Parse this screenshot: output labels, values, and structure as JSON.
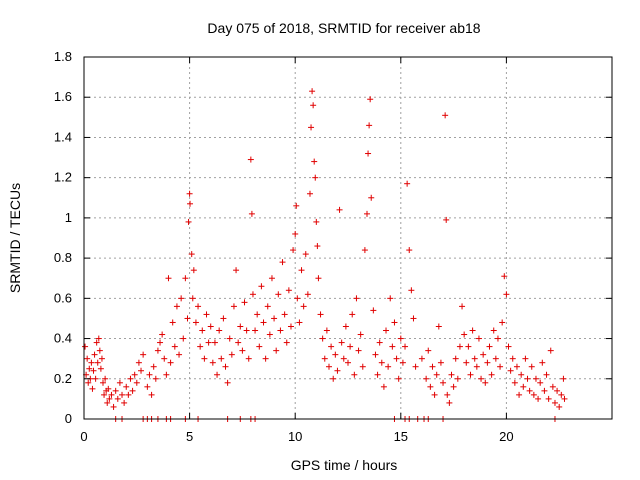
{
  "chart_data": {
    "type": "scatter",
    "title": "Day 075 of 2018, SRMTID for receiver ab18",
    "xlabel": "GPS time / hours",
    "ylabel": "SRMTID / TECUs",
    "xlim": [
      0,
      25
    ],
    "ylim": [
      0,
      1.8
    ],
    "xticks": [
      0,
      5,
      10,
      15,
      20
    ],
    "xtick_labels": [
      "0",
      "5",
      "10",
      "15",
      "20"
    ],
    "yticks": [
      0,
      0.2,
      0.4,
      0.6,
      0.8,
      1.0,
      1.2,
      1.4,
      1.6,
      1.8
    ],
    "ytick_labels": [
      "0",
      "0.2",
      "0.4",
      "0.6",
      "0.8",
      "1",
      "1.2",
      "1.4",
      "1.6",
      "1.8"
    ],
    "grid": true,
    "marker": "plus",
    "color": "#e00000",
    "series": [
      {
        "name": "SRMTID",
        "points": [
          [
            0.05,
            0.36
          ],
          [
            0.1,
            0.22
          ],
          [
            0.15,
            0.3
          ],
          [
            0.2,
            0.18
          ],
          [
            0.25,
            0.25
          ],
          [
            0.3,
            0.2
          ],
          [
            0.35,
            0.28
          ],
          [
            0.4,
            0.15
          ],
          [
            0.45,
            0.24
          ],
          [
            0.5,
            0.32
          ],
          [
            0.55,
            0.2
          ],
          [
            0.6,
            0.38
          ],
          [
            0.65,
            0.28
          ],
          [
            0.7,
            0.4
          ],
          [
            0.75,
            0.34
          ],
          [
            0.8,
            0.25
          ],
          [
            0.85,
            0.3
          ],
          [
            0.9,
            0.18
          ],
          [
            0.95,
            0.12
          ],
          [
            1.0,
            0.2
          ],
          [
            1.05,
            0.14
          ],
          [
            1.1,
            0.08
          ],
          [
            1.15,
            0.15
          ],
          [
            1.2,
            0.1
          ],
          [
            1.3,
            0.12
          ],
          [
            1.4,
            0.06
          ],
          [
            1.5,
            0.14
          ],
          [
            1.6,
            0.1
          ],
          [
            1.7,
            0.18
          ],
          [
            1.8,
            0.12
          ],
          [
            1.9,
            0.08
          ],
          [
            2.0,
            0.16
          ],
          [
            2.1,
            0.12
          ],
          [
            2.2,
            0.2
          ],
          [
            2.3,
            0.14
          ],
          [
            2.4,
            0.22
          ],
          [
            2.5,
            0.18
          ],
          [
            2.6,
            0.28
          ],
          [
            2.7,
            0.24
          ],
          [
            2.8,
            0.32
          ],
          [
            3.0,
            0.16
          ],
          [
            3.1,
            0.22
          ],
          [
            3.2,
            0.12
          ],
          [
            3.3,
            0.26
          ],
          [
            3.4,
            0.2
          ],
          [
            3.5,
            0.34
          ],
          [
            3.6,
            0.38
          ],
          [
            3.7,
            0.42
          ],
          [
            3.8,
            0.3
          ],
          [
            3.9,
            0.22
          ],
          [
            4.0,
            0.7
          ],
          [
            4.1,
            0.28
          ],
          [
            4.2,
            0.48
          ],
          [
            4.3,
            0.36
          ],
          [
            4.4,
            0.56
          ],
          [
            4.5,
            0.32
          ],
          [
            4.6,
            0.6
          ],
          [
            4.7,
            0.4
          ],
          [
            4.8,
            0.7
          ],
          [
            4.9,
            0.5
          ],
          [
            4.95,
            0.98
          ],
          [
            5.0,
            1.12
          ],
          [
            5.02,
            1.07
          ],
          [
            5.1,
            0.82
          ],
          [
            5.15,
            0.6
          ],
          [
            5.2,
            0.74
          ],
          [
            5.3,
            0.48
          ],
          [
            5.4,
            0.56
          ],
          [
            5.5,
            0.36
          ],
          [
            5.6,
            0.44
          ],
          [
            5.7,
            0.3
          ],
          [
            5.8,
            0.52
          ],
          [
            5.9,
            0.38
          ],
          [
            6.0,
            0.46
          ],
          [
            6.1,
            0.28
          ],
          [
            6.2,
            0.38
          ],
          [
            6.3,
            0.22
          ],
          [
            6.4,
            0.44
          ],
          [
            6.5,
            0.3
          ],
          [
            6.6,
            0.5
          ],
          [
            6.7,
            0.26
          ],
          [
            6.8,
            0.18
          ],
          [
            6.9,
            0.4
          ],
          [
            7.0,
            0.32
          ],
          [
            7.1,
            0.56
          ],
          [
            7.2,
            0.74
          ],
          [
            7.3,
            0.38
          ],
          [
            7.4,
            0.46
          ],
          [
            7.5,
            0.34
          ],
          [
            7.6,
            0.58
          ],
          [
            7.7,
            0.44
          ],
          [
            7.8,
            0.3
          ],
          [
            7.9,
            1.29
          ],
          [
            7.95,
            1.02
          ],
          [
            8.0,
            0.62
          ],
          [
            8.1,
            0.44
          ],
          [
            8.2,
            0.52
          ],
          [
            8.3,
            0.36
          ],
          [
            8.4,
            0.66
          ],
          [
            8.5,
            0.48
          ],
          [
            8.6,
            0.3
          ],
          [
            8.7,
            0.56
          ],
          [
            8.8,
            0.42
          ],
          [
            8.9,
            0.7
          ],
          [
            9.0,
            0.5
          ],
          [
            9.1,
            0.34
          ],
          [
            9.2,
            0.62
          ],
          [
            9.3,
            0.44
          ],
          [
            9.4,
            0.78
          ],
          [
            9.5,
            0.52
          ],
          [
            9.6,
            0.38
          ],
          [
            9.7,
            0.64
          ],
          [
            9.8,
            0.46
          ],
          [
            9.9,
            0.84
          ],
          [
            10.0,
            0.92
          ],
          [
            10.05,
            1.06
          ],
          [
            10.1,
            0.6
          ],
          [
            10.2,
            0.48
          ],
          [
            10.3,
            0.74
          ],
          [
            10.4,
            0.56
          ],
          [
            10.5,
            0.82
          ],
          [
            10.6,
            0.62
          ],
          [
            10.7,
            1.12
          ],
          [
            10.75,
            1.45
          ],
          [
            10.8,
            1.63
          ],
          [
            10.85,
            1.56
          ],
          [
            10.9,
            1.28
          ],
          [
            10.95,
            1.2
          ],
          [
            11.0,
            0.98
          ],
          [
            11.05,
            0.86
          ],
          [
            11.1,
            0.7
          ],
          [
            11.2,
            0.52
          ],
          [
            11.3,
            0.4
          ],
          [
            11.4,
            0.3
          ],
          [
            11.5,
            0.44
          ],
          [
            11.6,
            0.26
          ],
          [
            11.7,
            0.36
          ],
          [
            11.8,
            0.2
          ],
          [
            11.9,
            0.32
          ],
          [
            12.0,
            0.24
          ],
          [
            12.1,
            1.04
          ],
          [
            12.2,
            0.38
          ],
          [
            12.3,
            0.3
          ],
          [
            12.4,
            0.46
          ],
          [
            12.5,
            0.28
          ],
          [
            12.6,
            0.36
          ],
          [
            12.7,
            0.52
          ],
          [
            12.8,
            0.22
          ],
          [
            12.9,
            0.6
          ],
          [
            13.0,
            0.34
          ],
          [
            13.1,
            0.42
          ],
          [
            13.2,
            0.26
          ],
          [
            13.3,
            0.84
          ],
          [
            13.4,
            1.02
          ],
          [
            13.45,
            1.32
          ],
          [
            13.5,
            1.46
          ],
          [
            13.55,
            1.59
          ],
          [
            13.6,
            1.1
          ],
          [
            13.7,
            0.54
          ],
          [
            13.8,
            0.32
          ],
          [
            13.9,
            0.22
          ],
          [
            14.0,
            0.38
          ],
          [
            14.1,
            0.28
          ],
          [
            14.2,
            0.16
          ],
          [
            14.3,
            0.44
          ],
          [
            14.4,
            0.26
          ],
          [
            14.5,
            0.6
          ],
          [
            14.6,
            0.36
          ],
          [
            14.7,
            0.48
          ],
          [
            14.8,
            0.3
          ],
          [
            14.9,
            0.2
          ],
          [
            15.0,
            0.4
          ],
          [
            15.1,
            0.28
          ],
          [
            15.2,
            0.36
          ],
          [
            15.3,
            1.17
          ],
          [
            15.4,
            0.84
          ],
          [
            15.5,
            0.64
          ],
          [
            15.6,
            0.5
          ],
          [
            15.7,
            0.26
          ],
          [
            16.0,
            0.3
          ],
          [
            16.2,
            0.2
          ],
          [
            16.3,
            0.34
          ],
          [
            16.4,
            0.16
          ],
          [
            16.5,
            0.26
          ],
          [
            16.6,
            0.12
          ],
          [
            16.7,
            0.22
          ],
          [
            16.8,
            0.46
          ],
          [
            16.9,
            0.28
          ],
          [
            17.0,
            0.18
          ],
          [
            17.1,
            1.51
          ],
          [
            17.15,
            0.99
          ],
          [
            17.2,
            0.12
          ],
          [
            17.3,
            0.08
          ],
          [
            17.4,
            0.22
          ],
          [
            17.5,
            0.16
          ],
          [
            17.6,
            0.3
          ],
          [
            17.7,
            0.2
          ],
          [
            17.8,
            0.36
          ],
          [
            17.9,
            0.56
          ],
          [
            18.0,
            0.42
          ],
          [
            18.1,
            0.28
          ],
          [
            18.2,
            0.36
          ],
          [
            18.3,
            0.22
          ],
          [
            18.4,
            0.44
          ],
          [
            18.5,
            0.3
          ],
          [
            18.6,
            0.26
          ],
          [
            18.7,
            0.4
          ],
          [
            18.8,
            0.2
          ],
          [
            18.9,
            0.32
          ],
          [
            19.0,
            0.18
          ],
          [
            19.1,
            0.28
          ],
          [
            19.2,
            0.36
          ],
          [
            19.3,
            0.22
          ],
          [
            19.4,
            0.44
          ],
          [
            19.5,
            0.3
          ],
          [
            19.6,
            0.4
          ],
          [
            19.7,
            0.26
          ],
          [
            19.8,
            0.48
          ],
          [
            19.9,
            0.71
          ],
          [
            20.0,
            0.62
          ],
          [
            20.1,
            0.36
          ],
          [
            20.2,
            0.24
          ],
          [
            20.3,
            0.3
          ],
          [
            20.4,
            0.18
          ],
          [
            20.5,
            0.26
          ],
          [
            20.6,
            0.12
          ],
          [
            20.7,
            0.22
          ],
          [
            20.8,
            0.16
          ],
          [
            20.9,
            0.3
          ],
          [
            21.0,
            0.2
          ],
          [
            21.1,
            0.14
          ],
          [
            21.2,
            0.26
          ],
          [
            21.3,
            0.12
          ],
          [
            21.4,
            0.2
          ],
          [
            21.5,
            0.1
          ],
          [
            21.6,
            0.18
          ],
          [
            21.7,
            0.28
          ],
          [
            21.8,
            0.14
          ],
          [
            21.9,
            0.22
          ],
          [
            22.0,
            0.1
          ],
          [
            22.1,
            0.34
          ],
          [
            22.2,
            0.16
          ],
          [
            22.3,
            0.08
          ],
          [
            22.4,
            0.14
          ],
          [
            22.5,
            0.06
          ],
          [
            22.6,
            0.12
          ],
          [
            22.7,
            0.2
          ],
          [
            22.75,
            0.1
          ]
        ],
        "zero_points": [
          1.5,
          1.8,
          2.8,
          3.0,
          3.2,
          3.5,
          3.9,
          4.1,
          4.8,
          5.4,
          6.8,
          7.4,
          7.9,
          8.1,
          14.7,
          15.2,
          15.4,
          15.8,
          16.1,
          16.3,
          17.0,
          22.3
        ]
      }
    ]
  }
}
